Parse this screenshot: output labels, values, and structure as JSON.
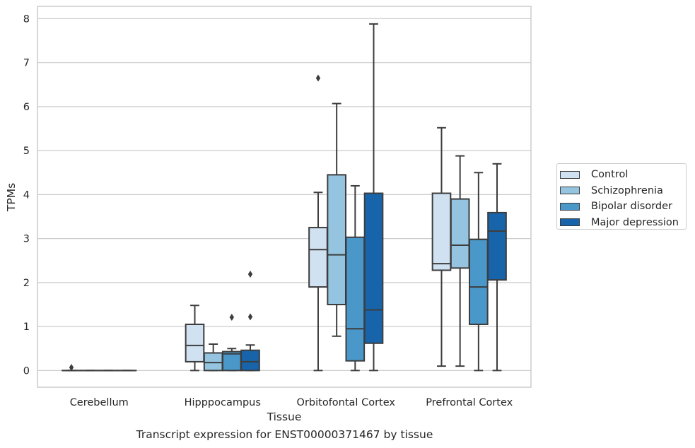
{
  "chart_data": {
    "type": "box",
    "title": "",
    "caption": "Transcript expression for ENST00000371467 by tissue",
    "xlabel": "Tissue",
    "ylabel": "TPMs",
    "ylim": [
      -0.38,
      8.28
    ],
    "yticks": [
      "0",
      "1",
      "2",
      "3",
      "4",
      "5",
      "6",
      "7",
      "8"
    ],
    "grid": "horizontal",
    "legend_placement": "right",
    "categories": [
      "Cerebellum",
      "Hipppocampus",
      "Orbitofontal Cortex",
      "Prefrontal Cortex"
    ],
    "series": [
      {
        "name": "Control",
        "color": "#d0e1f2",
        "boxes": [
          {
            "whislo": 0,
            "q1": 0,
            "med": 0,
            "q3": 0,
            "whishi": 0,
            "fliers": [
              0.07
            ]
          },
          {
            "whislo": 0,
            "q1": 0.2,
            "med": 0.57,
            "q3": 1.05,
            "whishi": 1.48,
            "fliers": []
          },
          {
            "whislo": 0,
            "q1": 1.9,
            "med": 2.75,
            "q3": 3.25,
            "whishi": 4.05,
            "fliers": [
              6.65
            ]
          },
          {
            "whislo": 0.1,
            "q1": 2.28,
            "med": 2.43,
            "q3": 4.03,
            "whishi": 5.52,
            "fliers": []
          }
        ]
      },
      {
        "name": "Schizophrenia",
        "color": "#94c4df",
        "boxes": [
          {
            "whislo": 0,
            "q1": 0,
            "med": 0,
            "q3": 0,
            "whishi": 0,
            "fliers": []
          },
          {
            "whislo": 0,
            "q1": 0,
            "med": 0.18,
            "q3": 0.4,
            "whishi": 0.6,
            "fliers": []
          },
          {
            "whislo": 0.78,
            "q1": 1.5,
            "med": 2.63,
            "q3": 4.45,
            "whishi": 6.07,
            "fliers": []
          },
          {
            "whislo": 0.1,
            "q1": 2.33,
            "med": 2.85,
            "q3": 3.9,
            "whishi": 4.88,
            "fliers": []
          }
        ]
      },
      {
        "name": "Bipolar disorder",
        "color": "#4a98c9",
        "boxes": [
          {
            "whislo": 0,
            "q1": 0,
            "med": 0,
            "q3": 0,
            "whishi": 0,
            "fliers": []
          },
          {
            "whislo": 0,
            "q1": 0,
            "med": 0.38,
            "q3": 0.43,
            "whishi": 0.5,
            "fliers": [
              1.21
            ]
          },
          {
            "whislo": 0,
            "q1": 0.22,
            "med": 0.95,
            "q3": 3.03,
            "whishi": 4.2,
            "fliers": []
          },
          {
            "whislo": 0,
            "q1": 1.05,
            "med": 1.9,
            "q3": 2.98,
            "whishi": 4.5,
            "fliers": []
          }
        ]
      },
      {
        "name": "Major depression",
        "color": "#1764ab",
        "boxes": [
          {
            "whislo": 0,
            "q1": 0,
            "med": 0,
            "q3": 0,
            "whishi": 0,
            "fliers": []
          },
          {
            "whislo": 0,
            "q1": 0,
            "med": 0.2,
            "q3": 0.46,
            "whishi": 0.58,
            "fliers": [
              1.22,
              2.19
            ]
          },
          {
            "whislo": 0,
            "q1": 0.62,
            "med": 1.38,
            "q3": 4.03,
            "whishi": 7.88,
            "fliers": []
          },
          {
            "whislo": 0,
            "q1": 2.06,
            "med": 3.17,
            "q3": 3.59,
            "whishi": 4.7,
            "fliers": []
          }
        ]
      }
    ]
  }
}
